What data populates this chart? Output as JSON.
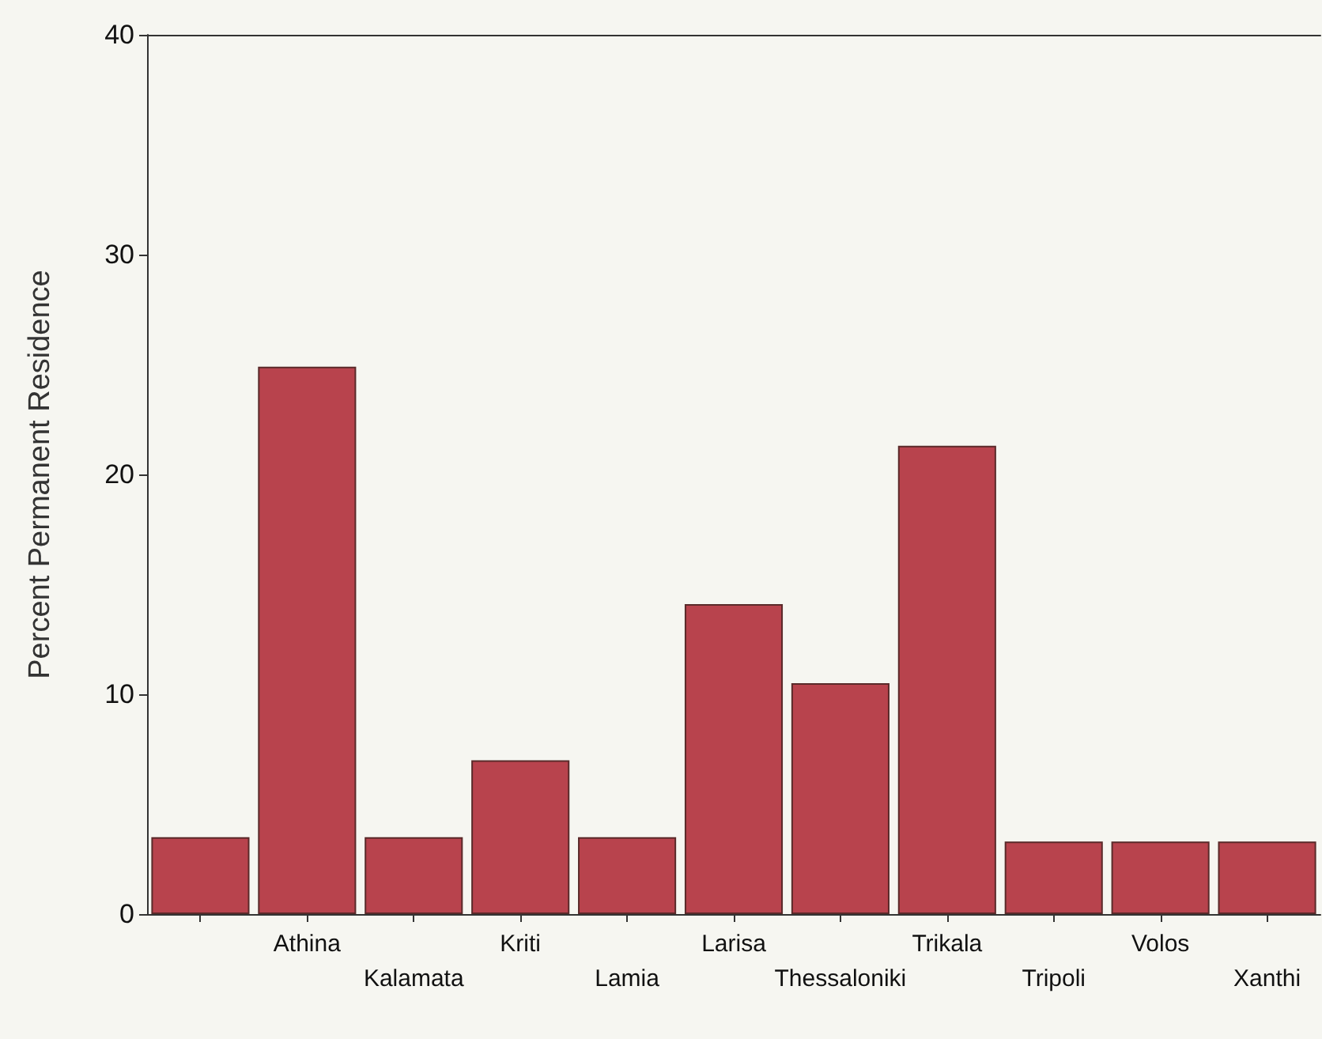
{
  "chart_data": {
    "type": "bar",
    "ylabel": "Percent Permanent Residence",
    "categories": [
      null,
      "Athina",
      "Kalamata",
      "Kriti",
      "Lamia",
      "Larisa",
      "Thessaloniki",
      "Trikala",
      "Tripoli",
      "Volos",
      "Xanthi"
    ],
    "values": [
      3.5,
      24.9,
      3.5,
      7.0,
      3.5,
      14.1,
      10.5,
      21.3,
      3.3,
      3.3,
      3.3
    ],
    "color": "#b8434d",
    "ylim": [
      0,
      40
    ],
    "yticks": [
      0,
      10,
      20,
      30,
      40
    ],
    "grid": false
  }
}
